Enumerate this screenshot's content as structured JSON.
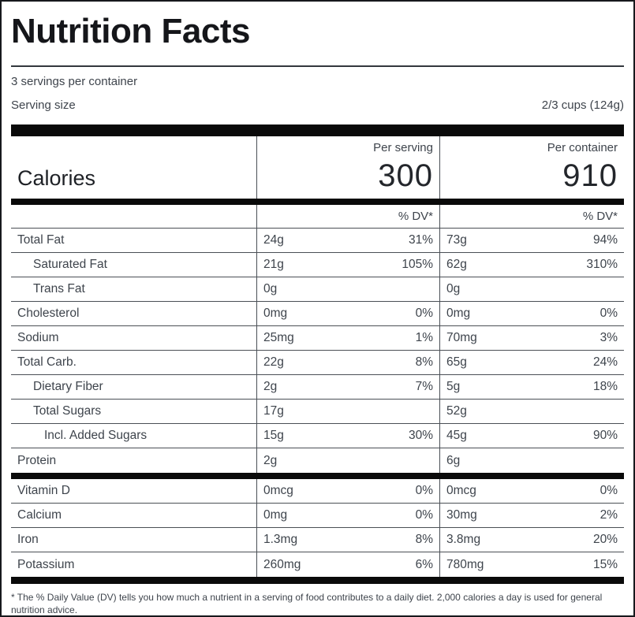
{
  "header": {
    "title": "Nutrition Facts",
    "servings_per_container": "3 servings per container",
    "serving_size_label": "Serving size",
    "serving_size_value": "2/3 cups (124g)"
  },
  "calories": {
    "label": "Calories",
    "columns": [
      {
        "heading": "Per serving",
        "value": "300"
      },
      {
        "heading": "Per container",
        "value": "910"
      }
    ]
  },
  "dv_header": "% DV*",
  "nutrients": [
    {
      "name": "Total Fat",
      "indent": 0,
      "serving_amount": "24g",
      "serving_dv": "31%",
      "container_amount": "73g",
      "container_dv": "94%"
    },
    {
      "name": "Saturated Fat",
      "indent": 1,
      "serving_amount": "21g",
      "serving_dv": "105%",
      "container_amount": "62g",
      "container_dv": "310%"
    },
    {
      "name": "Trans Fat",
      "indent": 1,
      "serving_amount": "0g",
      "serving_dv": "",
      "container_amount": "0g",
      "container_dv": ""
    },
    {
      "name": "Cholesterol",
      "indent": 0,
      "serving_amount": "0mg",
      "serving_dv": "0%",
      "container_amount": "0mg",
      "container_dv": "0%"
    },
    {
      "name": "Sodium",
      "indent": 0,
      "serving_amount": "25mg",
      "serving_dv": "1%",
      "container_amount": "70mg",
      "container_dv": "3%"
    },
    {
      "name": "Total Carb.",
      "indent": 0,
      "serving_amount": "22g",
      "serving_dv": "8%",
      "container_amount": "65g",
      "container_dv": "24%"
    },
    {
      "name": "Dietary Fiber",
      "indent": 1,
      "serving_amount": "2g",
      "serving_dv": "7%",
      "container_amount": "5g",
      "container_dv": "18%"
    },
    {
      "name": "Total Sugars",
      "indent": 1,
      "serving_amount": "17g",
      "serving_dv": "",
      "container_amount": "52g",
      "container_dv": ""
    },
    {
      "name": "Incl. Added Sugars",
      "indent": 2,
      "serving_amount": "15g",
      "serving_dv": "30%",
      "container_amount": "45g",
      "container_dv": "90%"
    },
    {
      "name": "Protein",
      "indent": 0,
      "serving_amount": "2g",
      "serving_dv": "",
      "container_amount": "6g",
      "container_dv": ""
    }
  ],
  "vitamins": [
    {
      "name": "Vitamin D",
      "indent": 0,
      "serving_amount": "0mcg",
      "serving_dv": "0%",
      "container_amount": "0mcg",
      "container_dv": "0%"
    },
    {
      "name": "Calcium",
      "indent": 0,
      "serving_amount": "0mg",
      "serving_dv": "0%",
      "container_amount": "30mg",
      "container_dv": "2%"
    },
    {
      "name": "Iron",
      "indent": 0,
      "serving_amount": "1.3mg",
      "serving_dv": "8%",
      "container_amount": "3.8mg",
      "container_dv": "20%"
    },
    {
      "name": "Potassium",
      "indent": 0,
      "serving_amount": "260mg",
      "serving_dv": "6%",
      "container_amount": "780mg",
      "container_dv": "15%"
    }
  ],
  "footnote": "* The % Daily Value (DV) tells you how much a nutrient in a serving of food contributes to a daily diet. 2,000 calories a day is used for general nutrition advice.",
  "colors": {
    "background": "#ffffff",
    "border": "#17181c",
    "title_text": "#15161a",
    "body_text": "#3e444c",
    "line": "#4a4f55",
    "bar": "#0a0a0a"
  }
}
